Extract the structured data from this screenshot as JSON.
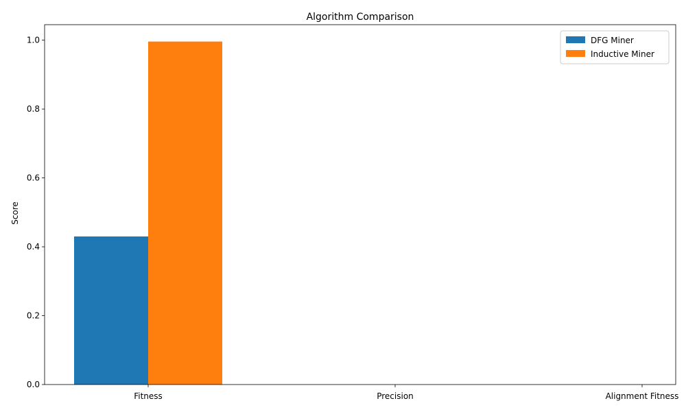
{
  "chart_data": {
    "type": "bar",
    "title": "Algorithm Comparison",
    "xlabel": "",
    "ylabel": "Score",
    "categories": [
      "Fitness",
      "Precision",
      "Alignment Fitness"
    ],
    "series": [
      {
        "name": "DFG Miner",
        "values": [
          0.43,
          0,
          0
        ],
        "color": "#1f77b4"
      },
      {
        "name": "Inductive Miner",
        "values": [
          0.996,
          0,
          0
        ],
        "color": "#ff7f0e"
      }
    ],
    "ylim": [
      0,
      1.045
    ],
    "yticks": [
      "0.0",
      "0.2",
      "0.4",
      "0.6",
      "0.8",
      "1.0"
    ],
    "ytick_values": [
      0,
      0.2,
      0.4,
      0.6,
      0.8,
      1.0
    ],
    "grid": false,
    "legend_position": "top-right"
  }
}
